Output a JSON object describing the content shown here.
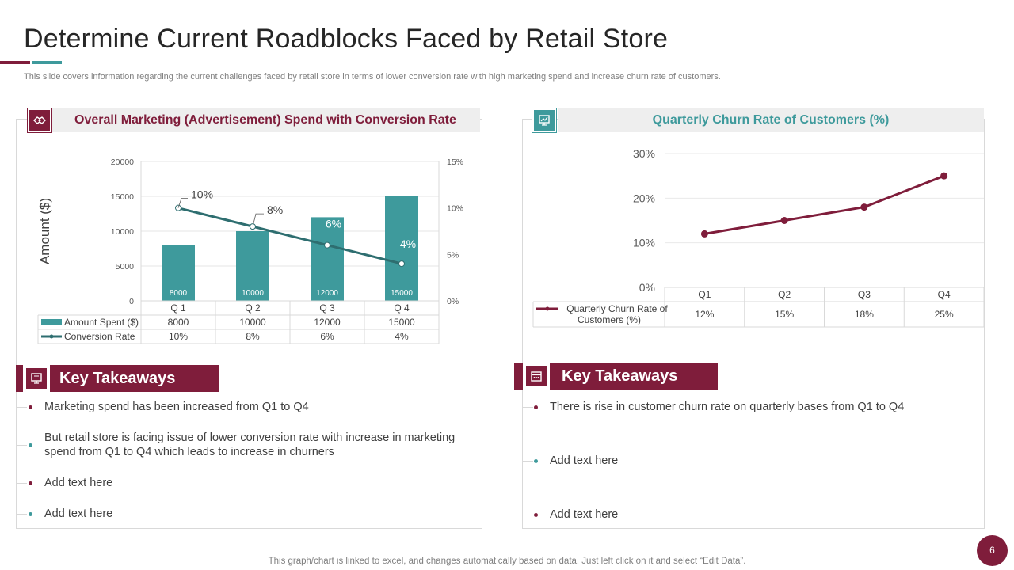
{
  "page": {
    "title": "Determine Current Roadblocks Faced by Retail Store",
    "subtitle": "This slide covers information regarding the current challenges faced by retail store in terms of lower conversion rate with high marketing spend and increase churn rate of customers.",
    "footer": "This graph/chart is linked to excel,  and changes automatically based on data. Just left click on it and select “Edit Data”.",
    "page_number": "6"
  },
  "colors": {
    "maroon": "#7f1d3b",
    "teal": "#3e9a9c",
    "dark_teal": "#2e6e70"
  },
  "left_panel": {
    "heading": "Overall Marketing (Advertisement) Spend with Conversion Rate",
    "icon": "handshake-icon",
    "takeaways_title": "Key Takeaways",
    "takeaways_icon": "monitor-icon",
    "bullets": [
      "Marketing  spend has been increased from Q1 to Q4",
      "But retail store  is facing issue  of lower conversion rate with increase in marketing spend from Q1 to Q4 which leads to increase in churners",
      "Add text here",
      "Add text here"
    ]
  },
  "right_panel": {
    "heading": "Quarterly Churn Rate of Customers (%)",
    "icon": "presentation-icon",
    "takeaways_title": "Key Takeaways",
    "takeaways_icon": "calendar-icon",
    "bullets": [
      "There is rise in customer churn rate on quarterly bases from Q1 to Q4",
      "Add text here",
      "Add text here"
    ]
  },
  "chart_data": [
    {
      "type": "bar",
      "combo": "bar+line",
      "title": "Overall Marketing (Advertisement) Spend with Conversion Rate",
      "categories": [
        "Q 1",
        "Q 2",
        "Q 3",
        "Q 4"
      ],
      "ylabel": "Amount ($)",
      "ylim": [
        0,
        20000
      ],
      "yticks": [
        "0",
        "5000",
        "10000",
        "15000",
        "20000"
      ],
      "y2lim": [
        0,
        15
      ],
      "y2ticks": [
        "0%",
        "5%",
        "10%",
        "15%"
      ],
      "series": [
        {
          "name": "Amount Spent ($)",
          "kind": "bar",
          "values": [
            8000,
            10000,
            12000,
            15000
          ],
          "labels": [
            "8000",
            "10000",
            "12000",
            "15000"
          ]
        },
        {
          "name": "Conversion Rate",
          "kind": "line",
          "axis": "secondary",
          "values": [
            10,
            8,
            6,
            4
          ],
          "labels": [
            "10%",
            "8%",
            "6%",
            "4%"
          ]
        }
      ],
      "legend": "data-table"
    },
    {
      "type": "line",
      "title": "Quarterly Churn Rate of Customers (%)",
      "categories": [
        "Q1",
        "Q2",
        "Q3",
        "Q4"
      ],
      "ylim": [
        0,
        30
      ],
      "yticks": [
        "0%",
        "10%",
        "20%",
        "30%"
      ],
      "series": [
        {
          "name": "Quarterly Churn Rate  of Customers (%)",
          "values": [
            12,
            15,
            18,
            25
          ],
          "labels": [
            "12%",
            "15%",
            "18%",
            "25%"
          ]
        }
      ],
      "legend": "data-table"
    }
  ]
}
